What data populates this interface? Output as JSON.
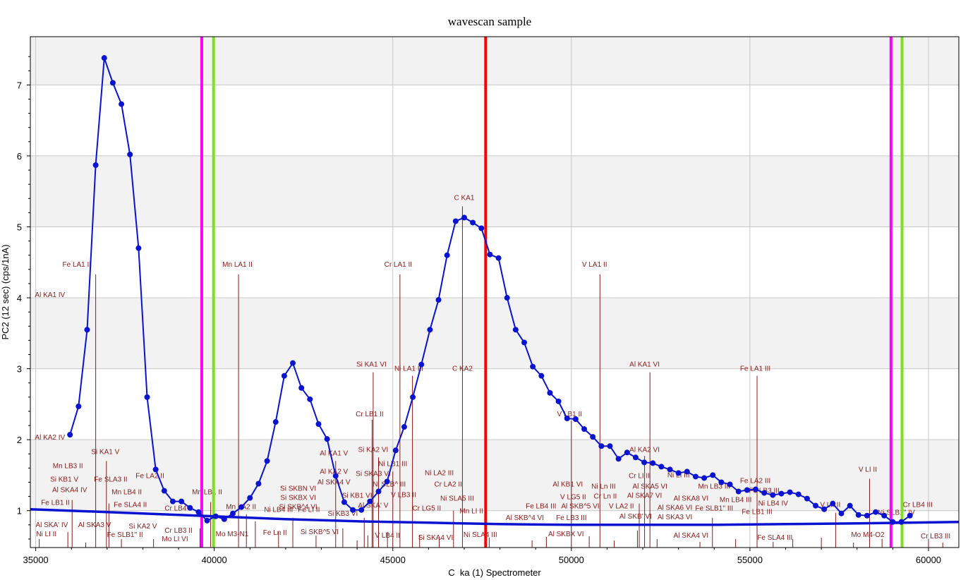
{
  "chart_data": {
    "type": "line",
    "title": "wavescan sample",
    "xlabel": "C  ka (1) Spectrometer",
    "ylabel": "PC2 (12 sec) (cps/1nA)",
    "xlim": [
      34850,
      60850
    ],
    "ylim": [
      0.48,
      7.68
    ],
    "x_ticks": [
      35000,
      40000,
      45000,
      50000,
      55000,
      60000
    ],
    "x_tick_labels": [
      "35000",
      "40000",
      "45000",
      "50000",
      "55000",
      "60000"
    ],
    "y_ticks": [
      1,
      2,
      3,
      4,
      5,
      6,
      7
    ],
    "y_tick_labels": [
      "1",
      "2",
      "3",
      "4",
      "5",
      "6",
      "7"
    ],
    "grid": true,
    "band_colors": [
      "#f2f2f2",
      "#ffffff"
    ],
    "series": [
      {
        "color": "#0a14d0",
        "markers": true,
        "x": [
          35960,
          36200,
          36440,
          36680,
          36920,
          37160,
          37400,
          37640,
          37880,
          38120,
          38360,
          38600,
          38840,
          39080,
          39320,
          39560,
          39800,
          40040,
          40280,
          40520,
          40760,
          41000,
          41240,
          41480,
          41720,
          41960,
          42200,
          42440,
          42680,
          42920,
          43160,
          43400,
          43640,
          43880,
          44120,
          44360,
          44600,
          44840,
          45080,
          45320,
          45560,
          45800,
          46040,
          46280,
          46520,
          46760,
          47000,
          47240,
          47480,
          47720,
          47960,
          48200,
          48440,
          48680,
          48920,
          49160,
          49400,
          49640,
          49880,
          50120,
          50360,
          50600,
          50840,
          51080,
          51320,
          51560,
          51800,
          52040,
          52280,
          52520,
          52760,
          53000,
          53240,
          53480,
          53720,
          53960,
          54200,
          54440,
          54680,
          54920,
          55160,
          55400,
          55640,
          55880,
          56120,
          56360,
          56600,
          56840,
          57080,
          57320,
          57560,
          57800,
          58040,
          58280,
          58520,
          58760,
          59000,
          59240,
          59480
        ],
        "y": [
          2.07,
          2.47,
          3.55,
          5.87,
          7.38,
          7.03,
          6.73,
          6.02,
          4.7,
          2.6,
          1.58,
          1.28,
          1.13,
          1.13,
          1.04,
          0.98,
          0.86,
          0.92,
          0.88,
          0.96,
          1.05,
          1.18,
          1.38,
          1.7,
          2.25,
          2.9,
          3.08,
          2.73,
          2.57,
          2.22,
          2.01,
          1.49,
          1.12,
          1.01,
          1.01,
          1.13,
          1.27,
          1.41,
          1.85,
          2.18,
          2.6,
          3.06,
          3.55,
          3.97,
          4.6,
          5.08,
          5.13,
          5.06,
          4.98,
          4.61,
          4.56,
          4.0,
          3.55,
          3.37,
          3.03,
          2.9,
          2.66,
          2.54,
          2.3,
          2.29,
          2.15,
          2.04,
          1.91,
          1.91,
          1.73,
          1.82,
          1.75,
          1.68,
          1.67,
          1.62,
          1.58,
          1.53,
          1.55,
          1.48,
          1.46,
          1.5,
          1.4,
          1.37,
          1.27,
          1.29,
          1.3,
          1.25,
          1.22,
          1.24,
          1.26,
          1.23,
          1.17,
          1.07,
          1.02,
          1.1,
          0.96,
          1.07,
          0.94,
          0.93,
          0.98,
          0.93,
          0.84,
          0.84,
          0.93
        ]
      },
      {
        "color": "#0a14d0",
        "markers": false,
        "x": [
          34850,
          37000,
          39000,
          40000,
          42000,
          44000,
          46000,
          48000,
          50000,
          52000,
          54000,
          56000,
          58000,
          60850
        ],
        "y": [
          1.02,
          0.98,
          0.94,
          0.92,
          0.88,
          0.85,
          0.83,
          0.81,
          0.8,
          0.8,
          0.8,
          0.81,
          0.82,
          0.84
        ]
      }
    ],
    "markers_vertical": [
      {
        "x": 39650,
        "color": "#ff00ff"
      },
      {
        "x": 39980,
        "color": "#7be31b"
      },
      {
        "x": 47600,
        "color": "#ff0000"
      },
      {
        "x": 58950,
        "color": "#ff00ff"
      },
      {
        "x": 59260,
        "color": "#7be31b"
      }
    ],
    "line_color": "#8b1a1a",
    "kline_labels": [
      {
        "text": "Fe LA1 II",
        "x": 36150,
        "y": 4.44
      },
      {
        "text": "Mn LA1 II",
        "x": 40650,
        "y": 4.44
      },
      {
        "text": "Cr LA1 II",
        "x": 45150,
        "y": 4.44
      },
      {
        "text": "V LA1 II",
        "x": 50650,
        "y": 4.44
      },
      {
        "text": "C KA1",
        "x": 47000,
        "y": 5.38
      },
      {
        "text": "Al KA1 IV",
        "x": 35400,
        "y": 4.01
      },
      {
        "text": "Si KA1 VI",
        "x": 44400,
        "y": 3.03
      },
      {
        "text": "Ni LA1 III",
        "x": 45450,
        "y": 2.97
      },
      {
        "text": "C KA2",
        "x": 46950,
        "y": 2.97
      },
      {
        "text": "Al KA1 VI",
        "x": 52050,
        "y": 3.03
      },
      {
        "text": "Fe LA1 III",
        "x": 55150,
        "y": 2.97
      },
      {
        "text": "Cr LB1 II",
        "x": 44350,
        "y": 2.33
      },
      {
        "text": "V LB1 II",
        "x": 49950,
        "y": 2.33
      },
      {
        "text": "Al KA2 IV",
        "x": 35400,
        "y": 2.0
      },
      {
        "text": "Si KA1 V",
        "x": 36950,
        "y": 1.8
      },
      {
        "text": "Al KA1 V",
        "x": 43350,
        "y": 1.78
      },
      {
        "text": "Si KA2 VI",
        "x": 44450,
        "y": 1.83
      },
      {
        "text": "Al KA2 VI",
        "x": 52050,
        "y": 1.83
      },
      {
        "text": "Ni LB1 III",
        "x": 45000,
        "y": 1.63
      },
      {
        "text": "Mn LB3 II",
        "x": 35900,
        "y": 1.6
      },
      {
        "text": "Ni LA2 III",
        "x": 46300,
        "y": 1.5
      },
      {
        "text": "Al KA2 V",
        "x": 43350,
        "y": 1.52
      },
      {
        "text": "V LI II",
        "x": 58300,
        "y": 1.55
      },
      {
        "text": "Si KB1 V",
        "x": 35800,
        "y": 1.41
      },
      {
        "text": "Fe SLA3 II",
        "x": 37100,
        "y": 1.41
      },
      {
        "text": "Fe LA2 II",
        "x": 38200,
        "y": 1.46
      },
      {
        "text": "Si SKA3 VI",
        "x": 44450,
        "y": 1.49
      },
      {
        "text": "Cr LI II",
        "x": 51900,
        "y": 1.46
      },
      {
        "text": "Ni LI III",
        "x": 53000,
        "y": 1.47
      },
      {
        "text": "Al SKA4 V",
        "x": 43350,
        "y": 1.37
      },
      {
        "text": "Ni SLB^ III",
        "x": 44900,
        "y": 1.34
      },
      {
        "text": "Cr LA2 II",
        "x": 46550,
        "y": 1.34
      },
      {
        "text": "Al KB1 VI",
        "x": 49900,
        "y": 1.34
      },
      {
        "text": "Ni Ln III",
        "x": 50900,
        "y": 1.31
      },
      {
        "text": "Al SKA5 VI",
        "x": 52200,
        "y": 1.31
      },
      {
        "text": "Mn LB3 III",
        "x": 54000,
        "y": 1.31
      },
      {
        "text": "Fe LA2 III",
        "x": 55150,
        "y": 1.39
      },
      {
        "text": "Al SKA4 IV",
        "x": 35950,
        "y": 1.26
      },
      {
        "text": "Mn LB4 II",
        "x": 37550,
        "y": 1.23
      },
      {
        "text": "Mn LB1 II",
        "x": 39800,
        "y": 1.23
      },
      {
        "text": "Si KB1 VI",
        "x": 44000,
        "y": 1.18
      },
      {
        "text": "V LB3 II",
        "x": 45300,
        "y": 1.19
      },
      {
        "text": "Ni SLA5 III",
        "x": 46800,
        "y": 1.14
      },
      {
        "text": "V LG5 II",
        "x": 50050,
        "y": 1.16
      },
      {
        "text": "Cr Ln II",
        "x": 50950,
        "y": 1.17
      },
      {
        "text": "Al SKA7 VI",
        "x": 52050,
        "y": 1.18
      },
      {
        "text": "Al SKA8 VI",
        "x": 53350,
        "y": 1.14
      },
      {
        "text": "Mn LB4 III",
        "x": 54600,
        "y": 1.12
      },
      {
        "text": "Fe LB3 III",
        "x": 55400,
        "y": 1.25
      },
      {
        "text": "Ni LB4 IV",
        "x": 55650,
        "y": 1.07
      },
      {
        "text": "Fe LB1 II",
        "x": 35550,
        "y": 1.08
      },
      {
        "text": "Fe SLA4 II",
        "x": 37650,
        "y": 1.05
      },
      {
        "text": "Cr LB4 II",
        "x": 39000,
        "y": 1.0
      },
      {
        "text": "Mn LA2 II",
        "x": 40750,
        "y": 1.02
      },
      {
        "text": "Ni LB4 III",
        "x": 41800,
        "y": 0.98
      },
      {
        "text": "Fe LI II",
        "x": 42650,
        "y": 0.98
      },
      {
        "text": "Al SKA' V",
        "x": 44450,
        "y": 1.04
      },
      {
        "text": "Cr LG5 II",
        "x": 45950,
        "y": 1.0
      },
      {
        "text": "Mn LI II",
        "x": 47200,
        "y": 0.96
      },
      {
        "text": "Fe LB4 III",
        "x": 49150,
        "y": 1.03
      },
      {
        "text": "Al SKB^5 VI",
        "x": 50250,
        "y": 1.03
      },
      {
        "text": "V LA2 II",
        "x": 51400,
        "y": 1.03
      },
      {
        "text": "Al SKA6 VI",
        "x": 52900,
        "y": 1.01
      },
      {
        "text": "Fe SLB1'' III",
        "x": 54000,
        "y": 1.0
      },
      {
        "text": "Fe LB1 III",
        "x": 55200,
        "y": 0.95
      },
      {
        "text": "V Ln II",
        "x": 57250,
        "y": 1.05
      },
      {
        "text": "Cr LB4 III",
        "x": 59700,
        "y": 1.05
      },
      {
        "text": "Si SKBN VI",
        "x": 42350,
        "y": 1.28
      },
      {
        "text": "Si SKBX VI",
        "x": 42350,
        "y": 1.15
      },
      {
        "text": "Si SKB^4 VI",
        "x": 42350,
        "y": 1.02
      },
      {
        "text": "Si KB3 VI",
        "x": 43600,
        "y": 0.93
      },
      {
        "text": "Al SKB' VI",
        "x": 51800,
        "y": 0.89
      },
      {
        "text": "Al SKA3 VI",
        "x": 52900,
        "y": 0.88
      },
      {
        "text": "Al SKB^4 VI",
        "x": 48700,
        "y": 0.87
      },
      {
        "text": "Fe LB3 III",
        "x": 50000,
        "y": 0.87
      },
      {
        "text": "Al SKA' IV",
        "x": 35450,
        "y": 0.77
      },
      {
        "text": "Al SKA3 V",
        "x": 36650,
        "y": 0.77
      },
      {
        "text": "Si KA2 V",
        "x": 38000,
        "y": 0.75
      },
      {
        "text": "Cr LB3 II",
        "x": 39000,
        "y": 0.69
      },
      {
        "text": "Mo M3-N1",
        "x": 40500,
        "y": 0.64
      },
      {
        "text": "Fe Ln II",
        "x": 41700,
        "y": 0.66
      },
      {
        "text": "Si SKB^5 VI",
        "x": 42950,
        "y": 0.67
      },
      {
        "text": "V LB4 II",
        "x": 44850,
        "y": 0.62
      },
      {
        "text": "Ni SLA4 III",
        "x": 47450,
        "y": 0.63
      },
      {
        "text": "Al SKBX VI",
        "x": 49850,
        "y": 0.64
      },
      {
        "text": "Al SKA4 VI",
        "x": 53350,
        "y": 0.62
      },
      {
        "text": "Fe SLA4 III",
        "x": 55700,
        "y": 0.59
      },
      {
        "text": "Mo M4-O2",
        "x": 58300,
        "y": 0.63
      },
      {
        "text": "Ni LI II",
        "x": 35300,
        "y": 0.64
      },
      {
        "text": "Fe SLB1'' II",
        "x": 37500,
        "y": 0.63
      },
      {
        "text": "Mo LI VI",
        "x": 38900,
        "y": 0.57
      },
      {
        "text": "Si SKA4 VI",
        "x": 46200,
        "y": 0.59
      },
      {
        "text": "Ni SLB1'' IV",
        "x": 59100,
        "y": 0.94
      },
      {
        "text": "Cr LB3 III",
        "x": 60200,
        "y": 0.61
      }
    ],
    "kline_lines": [
      {
        "x": 36680,
        "h": 4.33
      },
      {
        "x": 40680,
        "h": 4.33
      },
      {
        "x": 45200,
        "h": 4.33
      },
      {
        "x": 50800,
        "h": 4.33
      },
      {
        "x": 46950,
        "h": 5.29
      },
      {
        "x": 44450,
        "h": 2.95
      },
      {
        "x": 45550,
        "h": 2.9
      },
      {
        "x": 52200,
        "h": 2.95
      },
      {
        "x": 55200,
        "h": 2.9
      },
      {
        "x": 44420,
        "h": 2.28
      },
      {
        "x": 50000,
        "h": 2.27
      },
      {
        "x": 36980,
        "h": 1.7
      },
      {
        "x": 43400,
        "h": 1.7
      },
      {
        "x": 44600,
        "h": 1.75
      },
      {
        "x": 52050,
        "h": 1.77
      },
      {
        "x": 58350,
        "h": 1.45
      },
      {
        "x": 45000,
        "h": 1.55
      },
      {
        "x": 36020,
        "h": 1.15
      },
      {
        "x": 39900,
        "h": 1.12
      },
      {
        "x": 51900,
        "h": 1.1
      },
      {
        "x": 57400,
        "h": 0.97
      },
      {
        "x": 37050,
        "h": 1.1
      },
      {
        "x": 40900,
        "h": 0.95
      },
      {
        "x": 46700,
        "h": 1.0
      },
      {
        "x": 53950,
        "h": 0.9
      },
      {
        "x": 44200,
        "h": 0.9
      },
      {
        "x": 35900,
        "h": 0.7
      },
      {
        "x": 35100,
        "h": 0.6
      },
      {
        "x": 36400,
        "h": 0.55
      },
      {
        "x": 37400,
        "h": 0.6
      },
      {
        "x": 38300,
        "h": 0.6
      },
      {
        "x": 39600,
        "h": 0.75
      },
      {
        "x": 41150,
        "h": 0.85
      },
      {
        "x": 41800,
        "h": 0.7
      },
      {
        "x": 42200,
        "h": 0.9
      },
      {
        "x": 42850,
        "h": 0.65
      },
      {
        "x": 43600,
        "h": 0.75
      },
      {
        "x": 44000,
        "h": 0.58
      },
      {
        "x": 44300,
        "h": 0.65
      },
      {
        "x": 44850,
        "h": 0.7
      },
      {
        "x": 45750,
        "h": 0.66
      },
      {
        "x": 46300,
        "h": 0.6
      },
      {
        "x": 47700,
        "h": 0.62
      },
      {
        "x": 48900,
        "h": 0.58
      },
      {
        "x": 49300,
        "h": 0.63
      },
      {
        "x": 50500,
        "h": 0.64
      },
      {
        "x": 51200,
        "h": 0.58
      },
      {
        "x": 51850,
        "h": 0.72
      },
      {
        "x": 52400,
        "h": 0.6
      },
      {
        "x": 53600,
        "h": 0.56
      },
      {
        "x": 54600,
        "h": 0.6
      },
      {
        "x": 55650,
        "h": 0.56
      },
      {
        "x": 56200,
        "h": 0.6
      },
      {
        "x": 57000,
        "h": 0.62
      },
      {
        "x": 57900,
        "h": 0.55
      },
      {
        "x": 58700,
        "h": 0.6
      },
      {
        "x": 60000,
        "h": 0.6
      },
      {
        "x": 60400,
        "h": 0.55
      }
    ]
  }
}
